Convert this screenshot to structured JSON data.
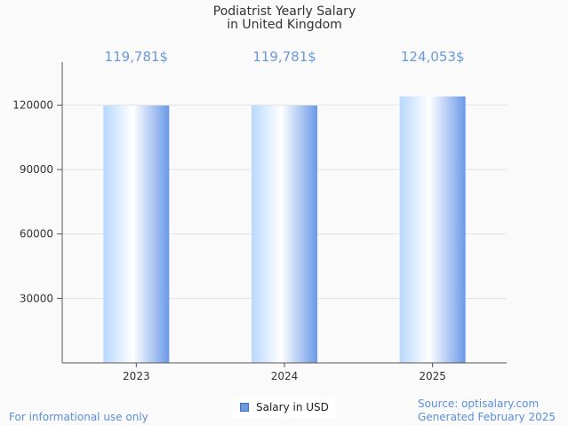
{
  "chart_data": {
    "type": "bar",
    "title": [
      "Podiatrist Yearly Salary",
      "in United Kingdom"
    ],
    "categories": [
      "2023",
      "2024",
      "2025"
    ],
    "series": [
      {
        "name": "Salary in USD",
        "values": [
          119781,
          119781,
          124053
        ]
      }
    ],
    "data_labels": [
      "119,781$",
      "119,781$",
      "124,053$"
    ],
    "y_ticks": [
      30000,
      60000,
      90000,
      120000
    ],
    "ylim": [
      0,
      140000
    ],
    "grid": true,
    "legend": "bottom-center",
    "colors": {
      "bar_light": "#ffffff",
      "bar_mid": "#b8d8ff",
      "bar_dark": "#6a99e8",
      "label": "#6a99d9"
    }
  },
  "footer": {
    "disclaimer": "For informational use only",
    "source": "Source: optisalary.com",
    "generated": "Generated February 2025"
  }
}
